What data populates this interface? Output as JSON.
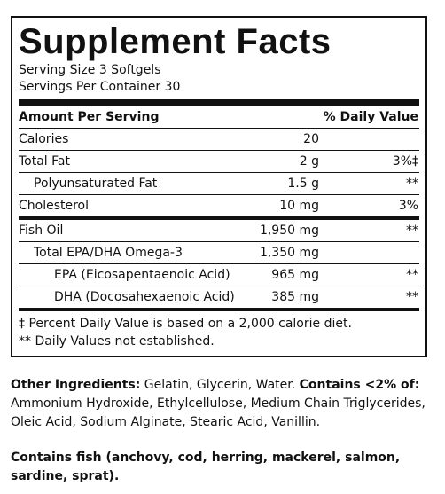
{
  "facts": {
    "title": "Supplement Facts",
    "serving_size": "Serving Size 3 Softgels",
    "servings_per_container": "Servings Per Container 30",
    "header": {
      "amount_label": "Amount Per Serving",
      "dv_label": "% Daily Value"
    },
    "rows_top": [
      {
        "name": "Calories",
        "amount": "20",
        "dv": ""
      },
      {
        "name": "Total Fat",
        "amount": "2 g",
        "dv": "3%‡"
      },
      {
        "name": "Polyunsaturated Fat",
        "amount": "1.5 g",
        "dv": "**"
      },
      {
        "name": "Cholesterol",
        "amount": "10 mg",
        "dv": "3%"
      }
    ],
    "rows_oil": [
      {
        "name": "Fish Oil",
        "amount": "1,950 mg",
        "dv": "**"
      },
      {
        "name": "Total EPA/DHA Omega-3",
        "amount": "1,350 mg",
        "dv": ""
      },
      {
        "name": "EPA (Eicosapentaenoic Acid)",
        "amount": "965 mg",
        "dv": "**"
      },
      {
        "name": "DHA (Docosahexaenoic Acid)",
        "amount": "385 mg",
        "dv": "**"
      }
    ],
    "footnotes": [
      "‡ Percent Daily Value is based on a 2,000 calorie diet.",
      "** Daily Values not established."
    ]
  },
  "other_ingredients": {
    "label": "Other Ingredients:",
    "text": " Gelatin, Glycerin, Water. ",
    "contains_label": "Contains <2% of:",
    "contains_text": " Ammonium Hydroxide, Ethylcellulose, Medium Chain Triglycerides, Oleic Acid, Sodium Alginate, Stearic Acid, Vanillin."
  },
  "allergen": {
    "text": "Contains fish (anchovy, cod, herring, mackerel, salmon, sardine, sprat)."
  }
}
